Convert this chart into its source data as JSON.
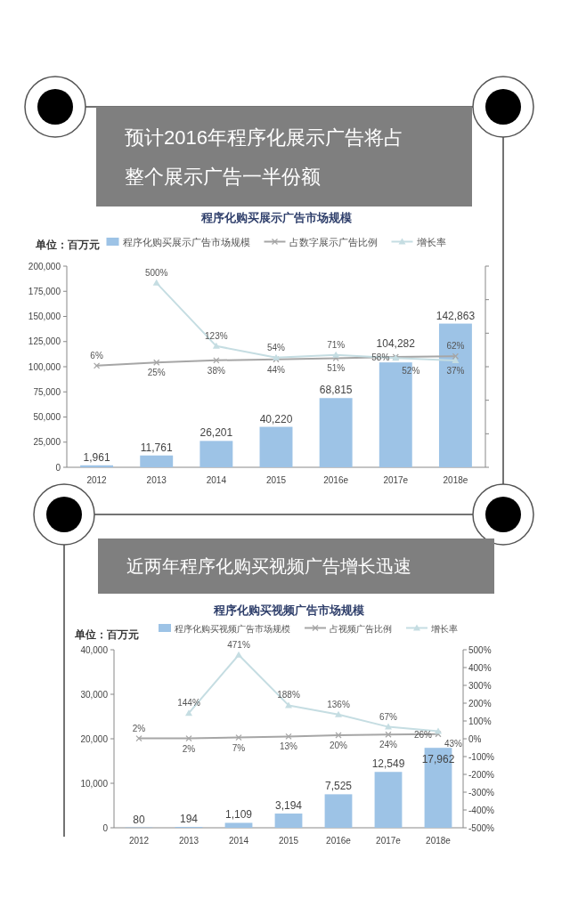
{
  "chart_data": [
    {
      "type": "bar",
      "title": "预计2016年程序化展示广告将占整个展示广告一半份额",
      "subtitle": "程序化购买展示广告市场规模",
      "ylabel": "单位：百万元",
      "categories": [
        "2012",
        "2013",
        "2014",
        "2015",
        "2016e",
        "2017e",
        "2018e"
      ],
      "series": [
        {
          "name": "程序化购买展示广告市场规模",
          "color": "#9dc3e6",
          "values": [
            1961,
            11761,
            26201,
            40220,
            68815,
            104282,
            142863
          ],
          "value_labels": [
            "1,961",
            "11,761",
            "26,201",
            "40,220",
            "68,815",
            "104,282",
            "142,863"
          ]
        },
        {
          "name": "占数字展示广告比例",
          "type": "line",
          "axis": "y2",
          "color": "#a6a6a6",
          "marker": "cross",
          "values": [
            6,
            25,
            38,
            44,
            51,
            58,
            62
          ],
          "value_labels": [
            "6%",
            "25%",
            "38%",
            "44%",
            "51%",
            "58%",
            "62%"
          ]
        },
        {
          "name": "增长率",
          "type": "line",
          "axis": "y2",
          "color": "#c5dde2",
          "marker": "triangle",
          "values": [
            null,
            500,
            123,
            54,
            71,
            52,
            37
          ],
          "value_labels": [
            null,
            "500%",
            "123%",
            "54%",
            "71%",
            "52%",
            "37%"
          ]
        }
      ],
      "ylim": [
        0,
        200000
      ],
      "yticks": [
        0,
        {
          "value": 25000,
          "label": "25,000"
        },
        {
          "value": 50000,
          "label": "50,000"
        },
        {
          "value": 75000,
          "label": "75,000"
        },
        {
          "value": 100000,
          "label": "100,000"
        },
        {
          "value": 125000,
          "label": "125,000"
        },
        {
          "value": 150000,
          "label": "150,000"
        },
        {
          "value": 175000,
          "label": "175,000"
        },
        {
          "value": 200000,
          "label": "200,000"
        }
      ],
      "y2lim": [
        -600,
        600
      ],
      "y2ticks": [
        {
          "value": -600,
          "label": null
        },
        {
          "value": -400,
          "label": null
        },
        {
          "value": -200,
          "label": null
        },
        {
          "value": 0,
          "label": null
        },
        {
          "value": 200,
          "label": null
        },
        {
          "value": 400,
          "label": null
        },
        {
          "value": 600,
          "label": null
        }
      ],
      "tick_labels": [
        "x",
        "y"
      ],
      "legend": "top"
    },
    {
      "type": "bar",
      "title": "近两年程序化购买视频广告增长迅速",
      "subtitle": "程序化购买视频广告市场规模",
      "ylabel": "单位：百万元",
      "categories": [
        "2012",
        "2013",
        "2014",
        "2015",
        "2016e",
        "2017e",
        "2018e"
      ],
      "series": [
        {
          "name": "程序化购买视频广告市场规模",
          "color": "#9dc3e6",
          "values": [
            80,
            194,
            1109,
            3194,
            7525,
            12549,
            17962
          ],
          "value_labels": [
            "80",
            "194",
            "1,109",
            "3,194",
            "7,525",
            "12,549",
            "17,962"
          ]
        },
        {
          "name": "占视频广告比例",
          "type": "line",
          "axis": "y2",
          "color": "#a6a6a6",
          "marker": "cross",
          "values": [
            2,
            2,
            7,
            13,
            20,
            24,
            26
          ],
          "value_labels": [
            "2%",
            "2%",
            "7%",
            "13%",
            "20%",
            "24%",
            "26%"
          ]
        },
        {
          "name": "增长率",
          "type": "line",
          "axis": "y2",
          "color": "#c5dde2",
          "marker": "triangle",
          "values": [
            null,
            144,
            471,
            188,
            136,
            67,
            43
          ],
          "value_labels": [
            null,
            "144%",
            "471%",
            "188%",
            "136%",
            "67%",
            "43%"
          ]
        }
      ],
      "ylim": [
        0,
        40000
      ],
      "yticks": [
        0,
        {
          "value": 10000,
          "label": "10,000"
        },
        {
          "value": 20000,
          "label": "20,000"
        },
        {
          "value": 30000,
          "label": "30,000"
        },
        {
          "value": 40000,
          "label": "40,000"
        }
      ],
      "y2lim": [
        -500,
        500
      ],
      "y2ticks": [
        {
          "value": -500,
          "label": "-500%"
        },
        {
          "value": -400,
          "label": "-400%"
        },
        {
          "value": -300,
          "label": "-300%"
        },
        {
          "value": -200,
          "label": "-200%"
        },
        {
          "value": -100,
          "label": "-100%"
        },
        {
          "value": 0,
          "label": "0%"
        },
        {
          "value": 100,
          "label": "100%"
        },
        {
          "value": 200,
          "label": "200%"
        },
        {
          "value": 300,
          "label": "300%"
        },
        {
          "value": 400,
          "label": "400%"
        },
        {
          "value": 500,
          "label": "500%"
        }
      ],
      "legend": "top"
    }
  ]
}
